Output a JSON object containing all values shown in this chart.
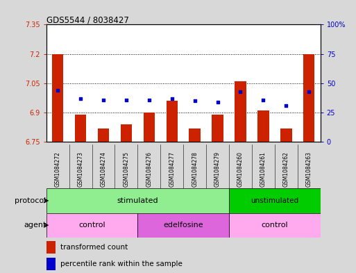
{
  "title": "GDS5544 / 8038427",
  "samples": [
    "GSM1084272",
    "GSM1084273",
    "GSM1084274",
    "GSM1084275",
    "GSM1084276",
    "GSM1084277",
    "GSM1084278",
    "GSM1084279",
    "GSM1084260",
    "GSM1084261",
    "GSM1084262",
    "GSM1084263"
  ],
  "bar_values": [
    7.2,
    6.89,
    6.82,
    6.84,
    6.9,
    6.96,
    6.82,
    6.89,
    7.06,
    6.91,
    6.82,
    7.2
  ],
  "dot_percentiles": [
    44,
    37,
    36,
    36,
    36,
    37,
    35,
    34,
    43,
    36,
    31,
    43
  ],
  "ylim_left": [
    6.75,
    7.35
  ],
  "ylim_right": [
    0,
    100
  ],
  "yticks_left": [
    6.75,
    6.9,
    7.05,
    7.2,
    7.35
  ],
  "yticks_right": [
    0,
    25,
    50,
    75,
    100
  ],
  "ytick_labels_left": [
    "6.75",
    "6.9",
    "7.05",
    "7.2",
    "7.35"
  ],
  "ytick_labels_right": [
    "0",
    "25",
    "50",
    "75",
    "100%"
  ],
  "hlines": [
    6.9,
    7.05,
    7.2
  ],
  "bar_color": "#cc2200",
  "dot_color": "#0000cc",
  "color_stimulated": "#90ee90",
  "color_unstimulated": "#00cc00",
  "color_control": "#ffaaee",
  "color_edelfosine": "#dd66dd",
  "bg_color": "#d8d8d8",
  "plot_bg": "#ffffff",
  "bar_width": 0.5,
  "protocol_label": "protocol",
  "agent_label": "agent",
  "stimulated_label": "stimulated",
  "unstimulated_label": "unstimulated",
  "control_label": "control",
  "edelfosine_label": "edelfosine",
  "legend_bar_label": "transformed count",
  "legend_dot_label": "percentile rank within the sample"
}
